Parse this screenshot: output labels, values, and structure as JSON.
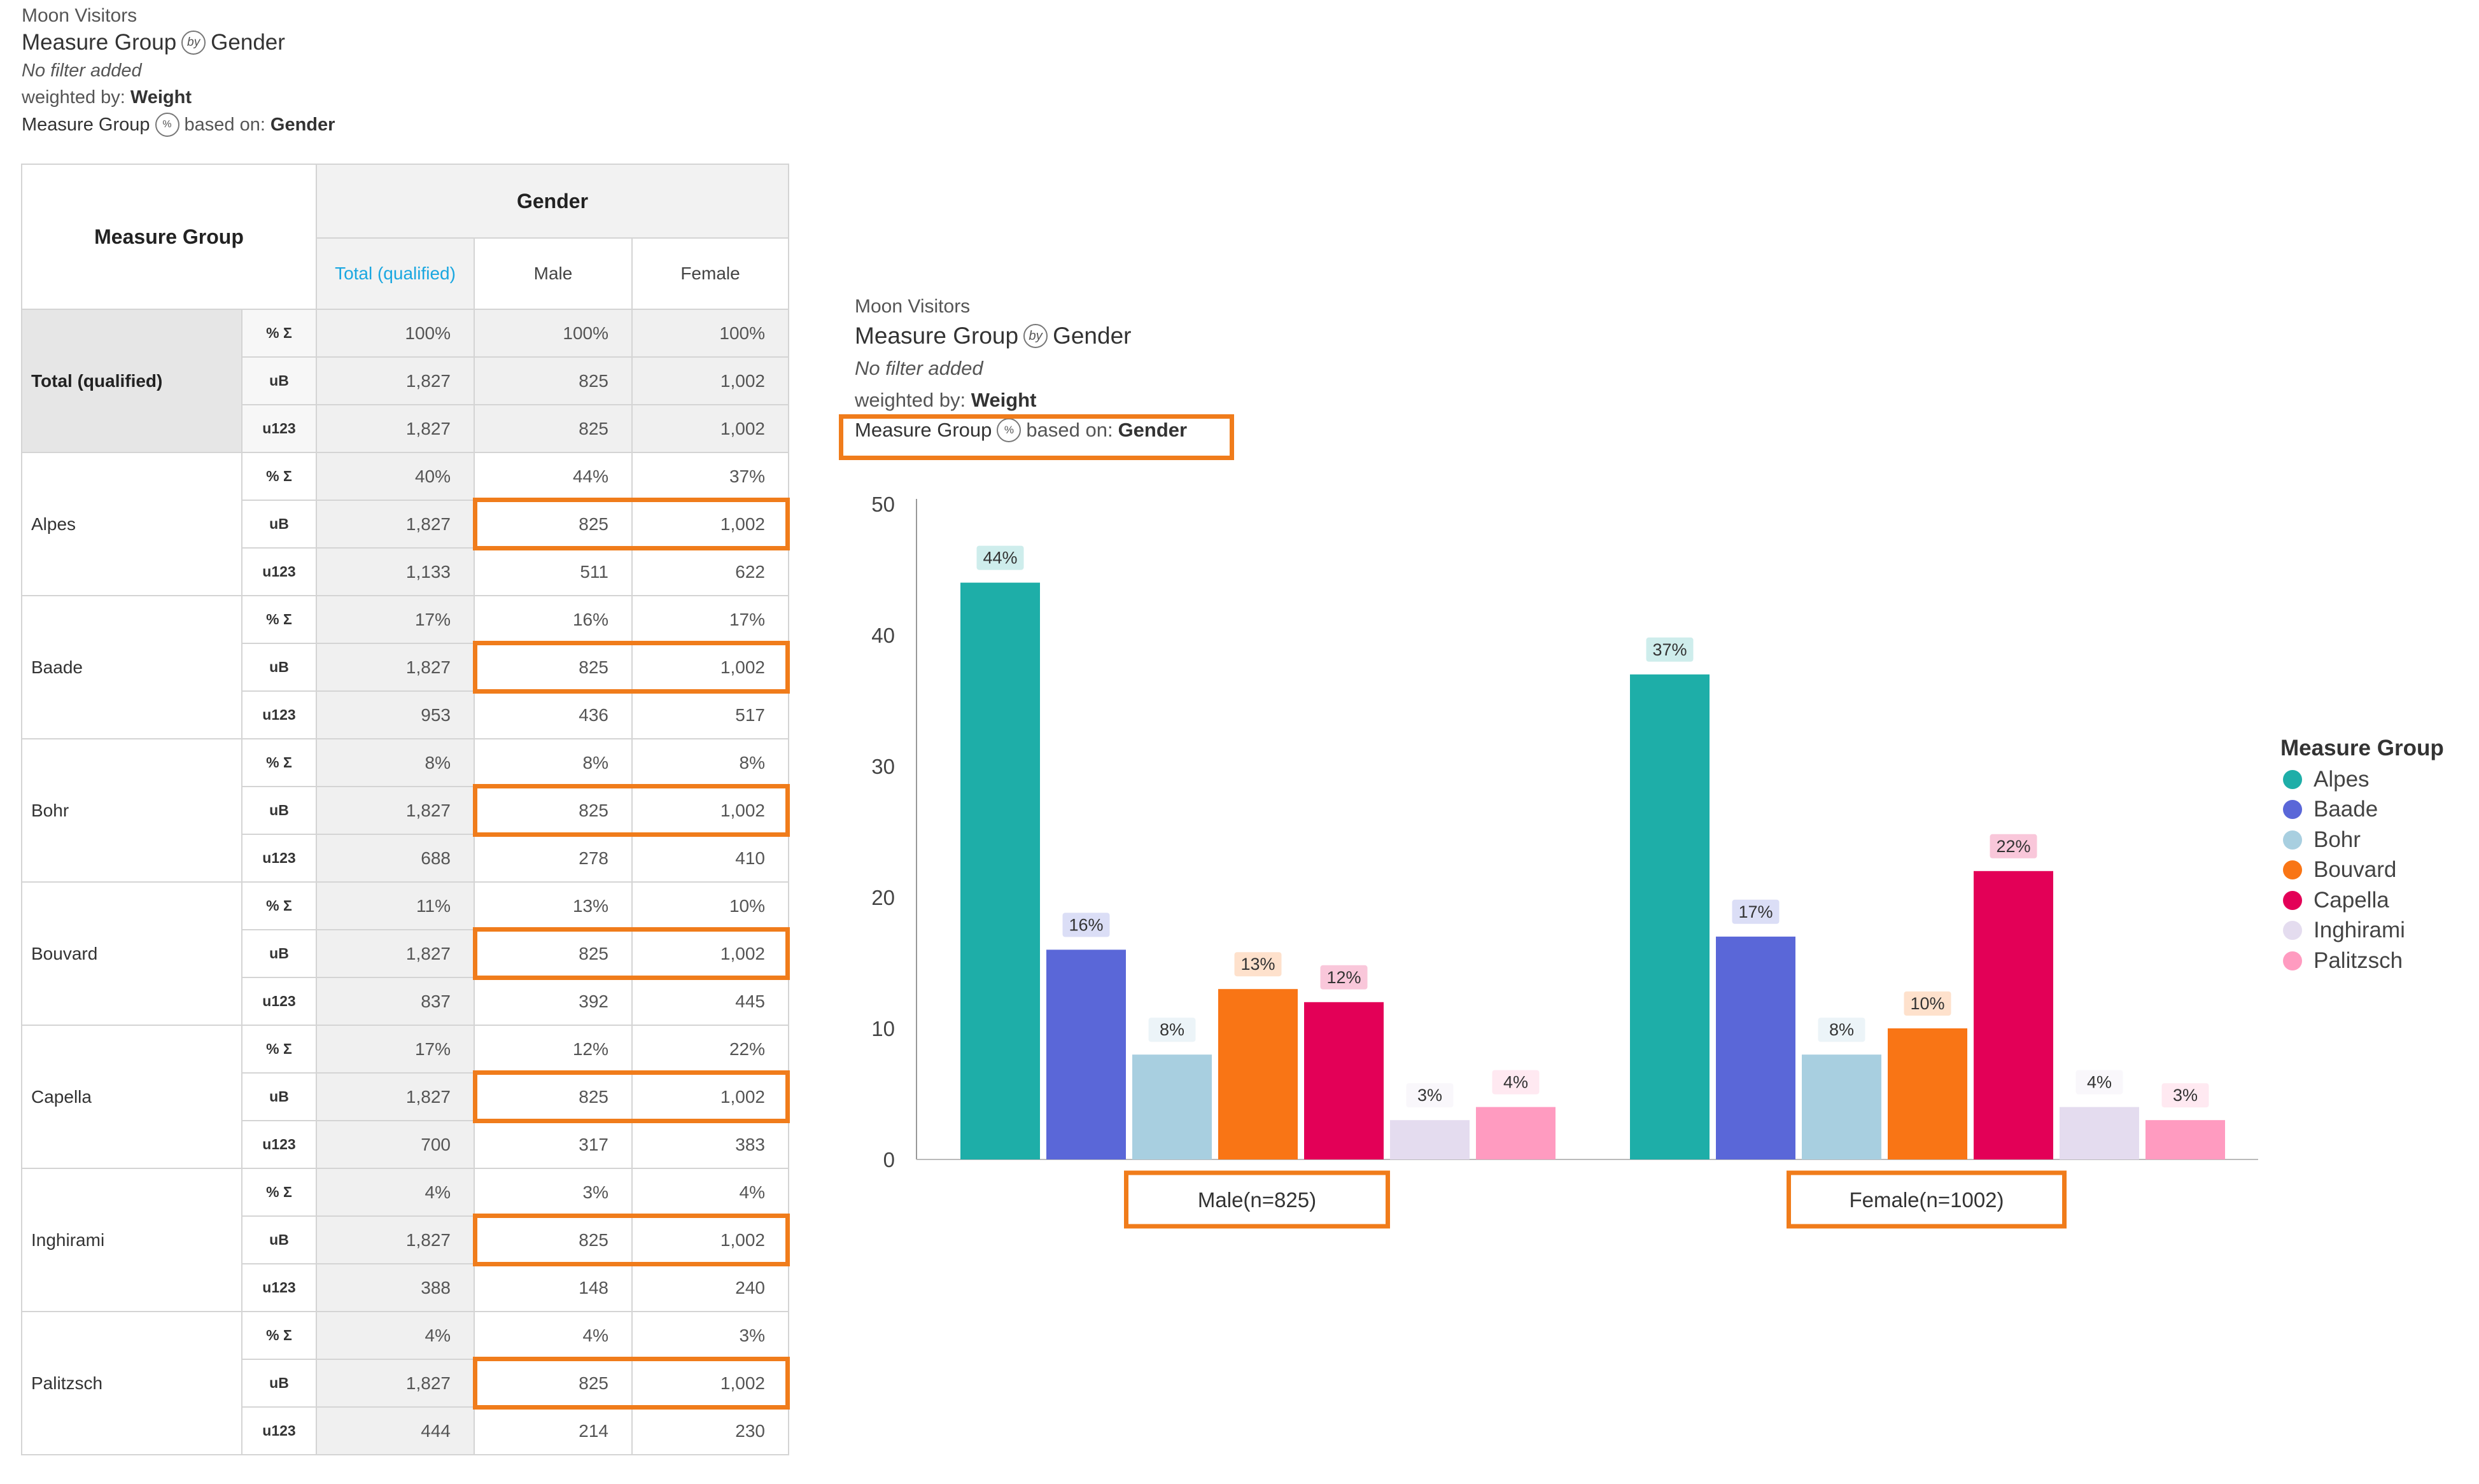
{
  "left_header": {
    "app": "Moon Visitors",
    "title_left": "Measure Group",
    "by_icon": "by",
    "title_right": "Gender",
    "filter": "No filter added",
    "weight_prefix": "weighted by:",
    "weight_value": "Weight",
    "based_left": "Measure Group",
    "pct_icon": "%",
    "based_mid": "based on:",
    "based_value": "Gender"
  },
  "right_header": {
    "app": "Moon Visitors",
    "title_left": "Measure Group",
    "by_icon": "by",
    "title_right": "Gender",
    "filter": "No filter added",
    "weight_prefix": "weighted by:",
    "weight_value": "Weight",
    "based_left": "Measure Group",
    "pct_icon": "%",
    "based_mid": "based on:",
    "based_value": "Gender"
  },
  "table": {
    "row_header": "Measure Group",
    "col_group": "Gender",
    "columns": [
      "Total (qualified)",
      "Male",
      "Female"
    ],
    "stats": [
      "% Σ",
      "uB",
      "u123"
    ],
    "groups": [
      {
        "label": "Total (qualified)",
        "rows": [
          [
            "100%",
            "100%",
            "100%"
          ],
          [
            "1,827",
            "825",
            "1,002"
          ],
          [
            "1,827",
            "825",
            "1,002"
          ]
        ]
      },
      {
        "label": "Alpes",
        "rows": [
          [
            "40%",
            "44%",
            "37%"
          ],
          [
            "1,827",
            "825",
            "1,002"
          ],
          [
            "1,133",
            "511",
            "622"
          ]
        ]
      },
      {
        "label": "Baade",
        "rows": [
          [
            "17%",
            "16%",
            "17%"
          ],
          [
            "1,827",
            "825",
            "1,002"
          ],
          [
            "953",
            "436",
            "517"
          ]
        ]
      },
      {
        "label": "Bohr",
        "rows": [
          [
            "8%",
            "8%",
            "8%"
          ],
          [
            "1,827",
            "825",
            "1,002"
          ],
          [
            "688",
            "278",
            "410"
          ]
        ]
      },
      {
        "label": "Bouvard",
        "rows": [
          [
            "11%",
            "13%",
            "10%"
          ],
          [
            "1,827",
            "825",
            "1,002"
          ],
          [
            "837",
            "392",
            "445"
          ]
        ]
      },
      {
        "label": "Capella",
        "rows": [
          [
            "17%",
            "12%",
            "22%"
          ],
          [
            "1,827",
            "825",
            "1,002"
          ],
          [
            "700",
            "317",
            "383"
          ]
        ]
      },
      {
        "label": "Inghirami",
        "rows": [
          [
            "4%",
            "3%",
            "4%"
          ],
          [
            "1,827",
            "825",
            "1,002"
          ],
          [
            "388",
            "148",
            "240"
          ]
        ]
      },
      {
        "label": "Palitzsch",
        "rows": [
          [
            "4%",
            "4%",
            "3%"
          ],
          [
            "1,827",
            "825",
            "1,002"
          ],
          [
            "444",
            "214",
            "230"
          ]
        ]
      }
    ]
  },
  "highlight_color": "#f07c1b",
  "chart_data": {
    "type": "bar",
    "categories": [
      "Male(n=825)",
      "Female(n=1002)"
    ],
    "series": [
      {
        "name": "Alpes",
        "color": "#1eaea8",
        "values": [
          44,
          37
        ],
        "labels": [
          "44%",
          "37%"
        ]
      },
      {
        "name": "Baade",
        "color": "#5a67d8",
        "values": [
          16,
          17
        ],
        "labels": [
          "16%",
          "17%"
        ]
      },
      {
        "name": "Bohr",
        "color": "#a8cfe0",
        "values": [
          8,
          8
        ],
        "labels": [
          "8%",
          "8%"
        ]
      },
      {
        "name": "Bouvard",
        "color": "#f97515",
        "values": [
          13,
          10
        ],
        "labels": [
          "13%",
          "10%"
        ]
      },
      {
        "name": "Capella",
        "color": "#e30057",
        "values": [
          12,
          22
        ],
        "labels": [
          "12%",
          "22%"
        ]
      },
      {
        "name": "Inghirami",
        "color": "#e4dcef",
        "values": [
          3,
          4
        ],
        "labels": [
          "3%",
          "4%"
        ]
      },
      {
        "name": "Palitzsch",
        "color": "#ff9bc0",
        "values": [
          4,
          3
        ],
        "labels": [
          "4%",
          "3%"
        ]
      }
    ],
    "yticks": [
      "0",
      "10",
      "20",
      "30",
      "40",
      "50"
    ],
    "ylim": [
      0,
      50
    ],
    "legend_title": "Measure Group",
    "legend_position": "right",
    "grid": false
  }
}
